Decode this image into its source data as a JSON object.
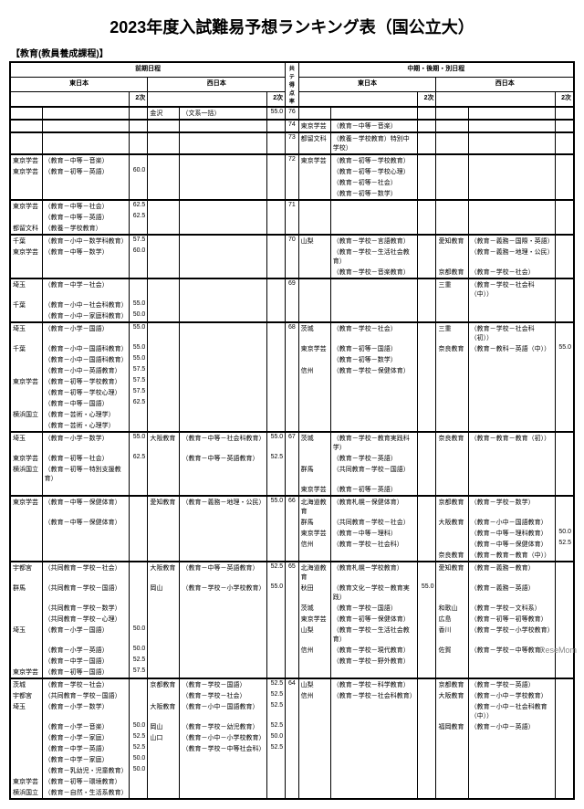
{
  "title": "2023年度入試難易予想ランキング表（国公立大）",
  "subtitle": "【教育(教員養成課程)】",
  "headers": {
    "schedule_left": "前期日程",
    "schedule_right": "中期・後期・別日程",
    "region_east": "東日本",
    "region_west": "西日本",
    "exam": "2次",
    "mid": "共テ得点率"
  },
  "watermark": "ReseMom",
  "rows": [
    {
      "score": "76",
      "fe_u": "",
      "fe_f": "",
      "fe_s": "",
      "fw_u": "金沢",
      "fw_f": "（文系一括）",
      "fw_s": "55.0",
      "be_u": "",
      "be_f": "",
      "be_s": "",
      "bw_u": "",
      "bw_f": "",
      "bw_s": ""
    },
    {
      "score": "74",
      "be_u": "東京学芸",
      "be_f": "（教育－中等－音楽）"
    },
    {
      "score": "73",
      "be_u": "都留文科",
      "be_f": "（教養－学校教育）特別中学校）"
    },
    {
      "score": "72",
      "fe_u": "東京学芸",
      "fe_f": "（教育－中等－音楽）",
      "be_u": "東京学芸",
      "be_f": "（教育－初等－学校教育）"
    },
    {
      "score": "",
      "fe_u": "東京学芸",
      "fe_f": "（教育－初等－英語）",
      "fe_s": "60.0",
      "be_u": "",
      "be_f": "（教育－初等－学校心理）"
    },
    {
      "score": "",
      "be_u": "",
      "be_f": "（教育－初等－社会）"
    },
    {
      "score": "",
      "be_u": "",
      "be_f": "（教育－初等－数学）"
    },
    {
      "score": "71",
      "fe_u": "東京学芸",
      "fe_f": "（教育－中等－社会）",
      "fe_s": "62.5"
    },
    {
      "score": "",
      "fe_u": "",
      "fe_f": "（教育－中等－英語）",
      "fe_s": "62.5"
    },
    {
      "score": "",
      "fe_u": "都留文科",
      "fe_f": "（教養－学校教育）"
    },
    {
      "score": "70",
      "fe_u": "千葉",
      "fe_f": "（教育－小中－数学科教育）",
      "fe_s": "57.5",
      "be_u": "山梨",
      "be_f": "（教育－学校－言語教育）",
      "bw_u": "愛知教育",
      "bw_f": "（教育－義務－国際・英語）"
    },
    {
      "score": "",
      "fe_u": "東京学芸",
      "fe_f": "（教育－中等－数学）",
      "fe_s": "60.0",
      "be_u": "",
      "be_f": "（教育－学校－生活社会教育）",
      "bw_u": "",
      "bw_f": "（教育－義務－地理・公民）"
    },
    {
      "score": "",
      "be_u": "",
      "be_f": "（教育－学校－音楽教育）",
      "bw_u": "京都教育",
      "bw_f": "（教育－学校－社会）"
    },
    {
      "score": "69",
      "fe_u": "埼玉",
      "fe_f": "（教育－中学－社会）",
      "bw_u": "三重",
      "bw_f": "（教育－学校－社会科（中））"
    },
    {
      "score": "",
      "fe_u": "千葉",
      "fe_f": "（教育－小中－社会科教育）",
      "fe_s": "55.0"
    },
    {
      "score": "",
      "fe_u": "",
      "fe_f": "（教育－小中－家庭科教育）",
      "fe_s": "50.0"
    },
    {
      "score": "68",
      "fe_u": "埼玉",
      "fe_f": "（教育－小学－国語）",
      "fe_s": "55.0",
      "be_u": "茨城",
      "be_f": "（教育－学校－社会）",
      "bw_u": "三重",
      "bw_f": "（教育－学校－社会科（初））"
    },
    {
      "score": "",
      "fe_u": "千葉",
      "fe_f": "（教育－小中－国語科教育）",
      "fe_s": "55.0",
      "be_u": "東京学芸",
      "be_f": "（教育－初等－国語）",
      "bw_u": "奈良教育",
      "bw_f": "（教育－教科－英語（中））",
      "bw_s": "55.0"
    },
    {
      "score": "",
      "fe_u": "",
      "fe_f": "（教育－小中－国語科教育）",
      "fe_s": "55.0",
      "be_u": "",
      "be_f": "（教育－初等－数学）"
    },
    {
      "score": "",
      "fe_u": "",
      "fe_f": "（教育－小中－英語教育）",
      "fe_s": "57.5",
      "be_u": "信州",
      "be_f": "（教育－学校－保健体育）"
    },
    {
      "score": "",
      "fe_u": "東京学芸",
      "fe_f": "（教育－初等－学校教育）",
      "fe_s": "57.5"
    },
    {
      "score": "",
      "fe_u": "",
      "fe_f": "（教育－初等－学校心理）",
      "fe_s": "57.5"
    },
    {
      "score": "",
      "fe_u": "",
      "fe_f": "（教育－中等－国語）",
      "fe_s": "62.5"
    },
    {
      "score": "",
      "fe_u": "横浜国立",
      "fe_f": "（教育－芸術・心理学）"
    },
    {
      "score": "",
      "fe_u": "",
      "fe_f": "（教育－芸術・心理学）"
    },
    {
      "score": "67",
      "fe_u": "埼玉",
      "fe_f": "（教育－小学－数学）",
      "fe_s": "55.0",
      "fw_u": "大阪教育",
      "fw_f": "（教育－中等－社会科教育）",
      "fw_s": "55.0",
      "be_u": "茨城",
      "be_f": "（教育－学校－教育実践科学）",
      "bw_u": "奈良教育",
      "bw_f": "（教育－教育－教育（初））"
    },
    {
      "score": "",
      "fe_u": "東京学芸",
      "fe_f": "（教育－初等－社会）",
      "fe_s": "62.5",
      "fw_u": "",
      "fw_f": "（教育－中等－英語教育）",
      "fw_s": "52.5",
      "be_u": "",
      "be_f": "（教育－学校－英語）"
    },
    {
      "score": "",
      "fe_u": "横浜国立",
      "fe_f": "（教育－初等－特別支援教育）",
      "be_u": "群馬",
      "be_f": "（共同教育－学校－国語）"
    },
    {
      "score": "",
      "be_u": "東京学芸",
      "be_f": "（教育－初等－英語）"
    },
    {
      "score": "66",
      "fe_u": "東京学芸",
      "fe_f": "（教育－中等－保健体育）",
      "fw_u": "愛知教育",
      "fw_f": "（教育－義務－地理・公民）",
      "fw_s": "55.0",
      "be_u": "北海道教育",
      "be_f": "（教育札幌－保健体育）",
      "bw_u": "京都教育",
      "bw_f": "（教育－学校－数学）"
    },
    {
      "score": "",
      "fe_u": "",
      "fe_f": "（教育－中等－保健体育）",
      "be_u": "群馬",
      "be_f": "（共同教育－学校－社会）",
      "bw_u": "大阪教育",
      "bw_f": "（教育－小中－国語教育）"
    },
    {
      "score": "",
      "be_u": "東京学芸",
      "be_f": "（教育－中等－理科）",
      "bw_u": "",
      "bw_f": "（教育－中等－理科教育）",
      "bw_s": "50.0"
    },
    {
      "score": "",
      "be_u": "信州",
      "be_f": "（教育－学校－社会科）",
      "bw_u": "",
      "bw_f": "（教育－中等－保健体育）",
      "bw_s": "52.5"
    },
    {
      "score": "",
      "bw_u": "奈良教育",
      "bw_f": "（教育－教育－教育（中））"
    },
    {
      "score": "65",
      "fe_u": "宇都宮",
      "fe_f": "（共同教育－学校－社会）",
      "fw_u": "大阪教育",
      "fw_f": "（教育－中等－英語教育）",
      "fw_s": "52.5",
      "be_u": "北海道教育",
      "be_f": "（教育札幌－学校教育）",
      "bw_u": "愛知教育",
      "bw_f": "（教育－義務－教育）"
    },
    {
      "score": "",
      "fe_u": "群馬",
      "fe_f": "（共同教育－学校－国語）",
      "fw_u": "岡山",
      "fw_f": "（教育－学校－小学校教育）",
      "fw_s": "55.0",
      "be_u": "秋田",
      "be_f": "（教育文化－学校－教育実践）",
      "be_s": "55.0",
      "bw_u": "",
      "bw_f": "（教育－義務－英語）"
    },
    {
      "score": "",
      "fe_u": "",
      "fe_f": "（共同教育－学校－数学）",
      "be_u": "茨城",
      "be_f": "（教育－学校－国語）",
      "bw_u": "和歌山",
      "bw_f": "（教育－学校－文科系）"
    },
    {
      "score": "",
      "fe_u": "",
      "fe_f": "（共同教育－学校－心理）",
      "be_u": "東京学芸",
      "be_f": "（教育－初等－保健体育）",
      "bw_u": "広島",
      "bw_f": "（教育－初等－初等教育）"
    },
    {
      "score": "",
      "fe_u": "埼玉",
      "fe_f": "（教育－小学－国語）",
      "fe_s": "50.0",
      "be_u": "山梨",
      "be_f": "（教育－学校－生活社会教育）",
      "bw_u": "香川",
      "bw_f": "（教育－学校－小学校教育）"
    },
    {
      "score": "",
      "fe_u": "",
      "fe_f": "（教育－小学－英語）",
      "fe_s": "50.0",
      "be_u": "信州",
      "be_f": "（教育－学校－現代教育）",
      "bw_u": "佐賀",
      "bw_f": "（教育－学校－中等教育）"
    },
    {
      "score": "",
      "fe_u": "",
      "fe_f": "（教育－中学－国語）",
      "fe_s": "52.5",
      "be_u": "",
      "be_f": "（教育－学校－野外教育）"
    },
    {
      "score": "",
      "fe_u": "東京学芸",
      "fe_f": "（教育－初等－国語）",
      "fe_s": "57.5"
    },
    {
      "score": "64",
      "fe_u": "茨城",
      "fe_f": "（教育－学校－社会）",
      "fw_u": "京都教育",
      "fw_f": "（教育－学校－国語）",
      "fw_s": "52.5",
      "be_u": "山梨",
      "be_f": "（教育－学校－科学教育）",
      "bw_u": "京都教育",
      "bw_f": "（教育－学校－英語）"
    },
    {
      "score": "",
      "fe_u": "宇都宮",
      "fe_f": "（共同教育－学校－国語）",
      "fw_u": "",
      "fw_f": "（教育－学校－社会）",
      "fw_s": "52.5",
      "be_u": "信州",
      "be_f": "（教育－学校－社会科教育）",
      "bw_u": "大阪教育",
      "bw_f": "（教育－小中－学校教育）"
    },
    {
      "score": "",
      "fe_u": "埼玉",
      "fe_f": "（教育－小学－数学）",
      "fw_u": "大阪教育",
      "fw_f": "（教育－小中－国語教育）",
      "fw_s": "52.5",
      "bw_u": "",
      "bw_f": "（教育－小中－社会科教育（中））"
    },
    {
      "score": "",
      "fe_u": "",
      "fe_f": "（教育－小学－音楽）",
      "fe_s": "50.0",
      "fw_u": "岡山",
      "fw_f": "（教育－学校－幼児教育）",
      "fw_s": "52.5",
      "bw_u": "福岡教育",
      "bw_f": "（教育－小中－英語）"
    },
    {
      "score": "",
      "fe_u": "",
      "fe_f": "（教育－小学－家庭）",
      "fe_s": "52.5",
      "fw_u": "山口",
      "fw_f": "（教育－小中－小学校教育）",
      "fw_s": "50.0"
    },
    {
      "score": "",
      "fe_u": "",
      "fe_f": "（教育－中学－英語）",
      "fe_s": "52.5",
      "fw_u": "",
      "fw_f": "（教育－学校－中等社会科）",
      "fw_s": "52.5"
    },
    {
      "score": "",
      "fe_u": "",
      "fe_f": "（教育－中学－家庭）",
      "fe_s": "50.0"
    },
    {
      "score": "",
      "fe_u": "",
      "fe_f": "（教育－乳幼児・児童教育）",
      "fe_s": "50.0"
    },
    {
      "score": "",
      "fe_u": "東京学芸",
      "fe_f": "（教育－初等－環境教育）"
    },
    {
      "score": "",
      "fe_u": "横浜国立",
      "fe_f": "（教育－自然・生活系教育）"
    }
  ]
}
